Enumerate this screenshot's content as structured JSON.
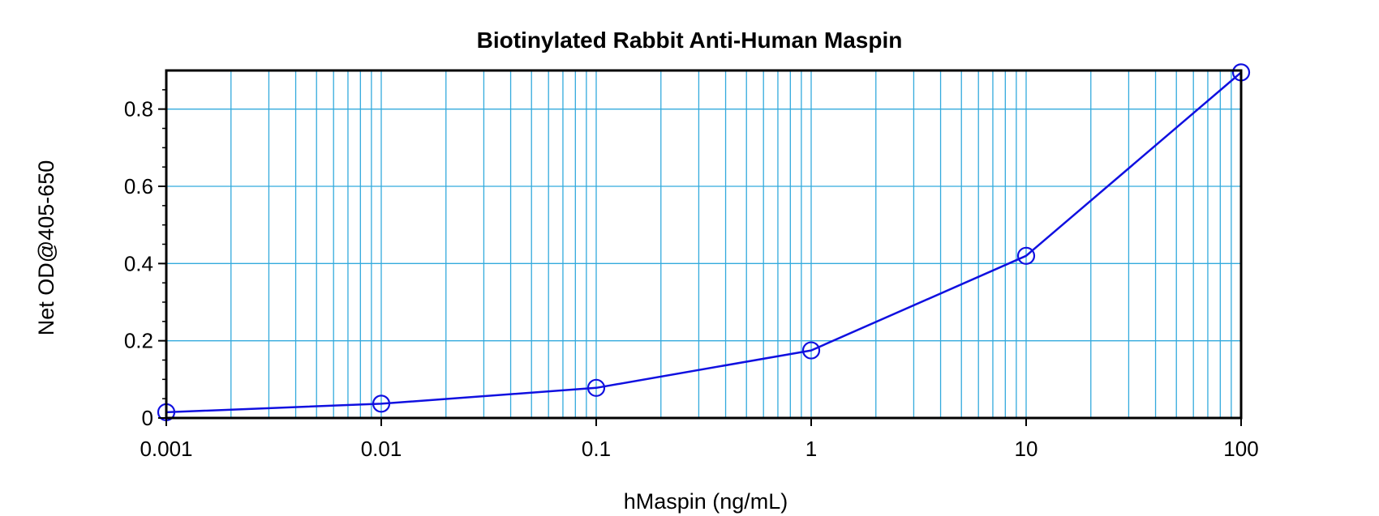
{
  "chart_data": {
    "type": "line",
    "title": "Biotinylated Rabbit Anti-Human Maspin",
    "xlabel": "hMaspin (ng/mL)",
    "ylabel": "Net OD@405-650",
    "x_scale": "log",
    "xlim": [
      0.001,
      100
    ],
    "ylim": [
      0,
      0.9
    ],
    "grid": true,
    "x_ticks": [
      0.001,
      0.01,
      0.1,
      1,
      10,
      100
    ],
    "x_tick_labels": [
      "0.001",
      "0.01",
      "0.1",
      "1",
      "10",
      "100"
    ],
    "y_ticks": [
      0,
      0.2,
      0.4,
      0.6,
      0.8
    ],
    "y_tick_labels": [
      "0",
      "0.2",
      "0.4",
      "0.6",
      "0.8"
    ],
    "series": [
      {
        "marker": "open-circle",
        "x": [
          0.001,
          0.01,
          0.1,
          1,
          10,
          100
        ],
        "y": [
          0.015,
          0.037,
          0.078,
          0.175,
          0.42,
          0.895
        ]
      }
    ],
    "colors": {
      "line": "#1010e0",
      "grid": "#33aadd",
      "frame": "#000000"
    }
  }
}
